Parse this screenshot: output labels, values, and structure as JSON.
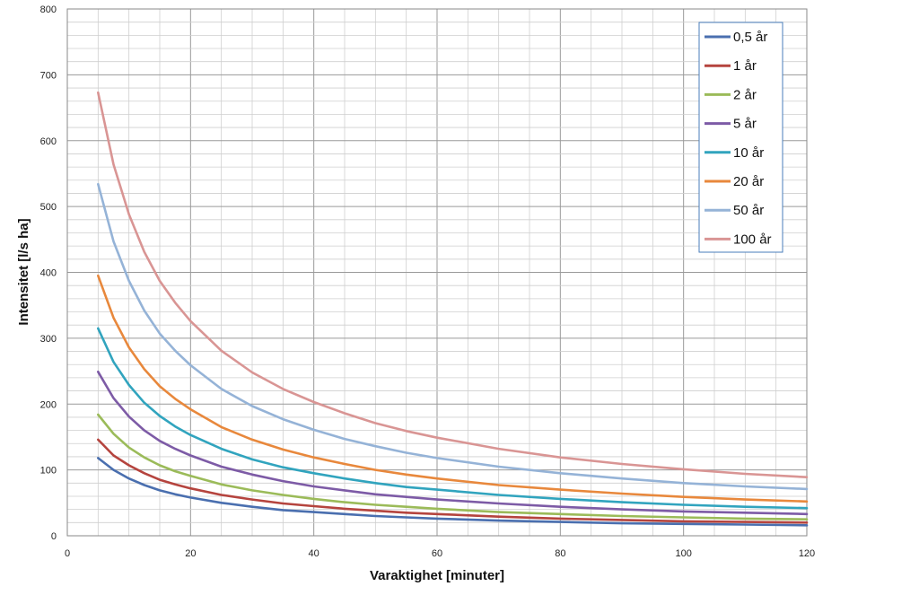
{
  "chart_data": {
    "type": "line",
    "title": "",
    "xlabel": "Varaktighet [minuter]",
    "ylabel": "Intensitet [l/s ha]",
    "xlim": [
      0,
      120
    ],
    "ylim": [
      0,
      800
    ],
    "x_ticks": [
      0,
      20,
      40,
      60,
      80,
      100,
      120
    ],
    "y_ticks": [
      0,
      100,
      200,
      300,
      400,
      500,
      600,
      700,
      800
    ],
    "grid": true,
    "legend_position": "top-right",
    "x": [
      5,
      7.5,
      10,
      12.5,
      15,
      17.5,
      20,
      25,
      30,
      35,
      40,
      45,
      50,
      55,
      60,
      70,
      80,
      90,
      100,
      110,
      120
    ],
    "series": [
      {
        "name": "0,5 år",
        "color": "#4a6faf",
        "values": [
          118,
          100,
          87,
          77,
          69,
          63,
          58,
          50,
          44,
          39,
          36,
          33,
          30,
          28,
          26,
          23,
          21,
          19,
          18,
          17,
          16
        ]
      },
      {
        "name": "1 år",
        "color": "#b5443e",
        "values": [
          146,
          122,
          107,
          95,
          85,
          78,
          72,
          62,
          55,
          49,
          45,
          41,
          38,
          35,
          33,
          29,
          26,
          24,
          22,
          21,
          20
        ]
      },
      {
        "name": "2 år",
        "color": "#9bbb59",
        "values": [
          184,
          155,
          134,
          119,
          107,
          98,
          91,
          78,
          69,
          62,
          56,
          51,
          47,
          44,
          41,
          36,
          33,
          30,
          28,
          26,
          25
        ]
      },
      {
        "name": "5 år",
        "color": "#7d5ba6",
        "values": [
          249,
          209,
          181,
          160,
          144,
          132,
          122,
          105,
          93,
          83,
          75,
          69,
          63,
          59,
          55,
          49,
          44,
          40,
          37,
          35,
          33
        ]
      },
      {
        "name": "10 år",
        "color": "#31a4be",
        "values": [
          315,
          264,
          229,
          202,
          182,
          166,
          153,
          132,
          116,
          104,
          95,
          87,
          80,
          74,
          70,
          62,
          56,
          51,
          47,
          44,
          42
        ]
      },
      {
        "name": "20 år",
        "color": "#e8883c",
        "values": [
          395,
          331,
          286,
          253,
          227,
          208,
          192,
          165,
          146,
          131,
          119,
          109,
          100,
          93,
          87,
          77,
          70,
          64,
          59,
          55,
          52
        ]
      },
      {
        "name": "50 år",
        "color": "#95b3d7",
        "values": [
          534,
          447,
          387,
          342,
          307,
          281,
          259,
          223,
          197,
          177,
          161,
          147,
          136,
          126,
          118,
          105,
          95,
          87,
          80,
          75,
          71
        ]
      },
      {
        "name": "100 år",
        "color": "#d99594",
        "values": [
          673,
          564,
          488,
          431,
          387,
          354,
          326,
          281,
          248,
          223,
          203,
          186,
          171,
          159,
          149,
          132,
          119,
          109,
          101,
          94,
          89
        ]
      }
    ]
  }
}
